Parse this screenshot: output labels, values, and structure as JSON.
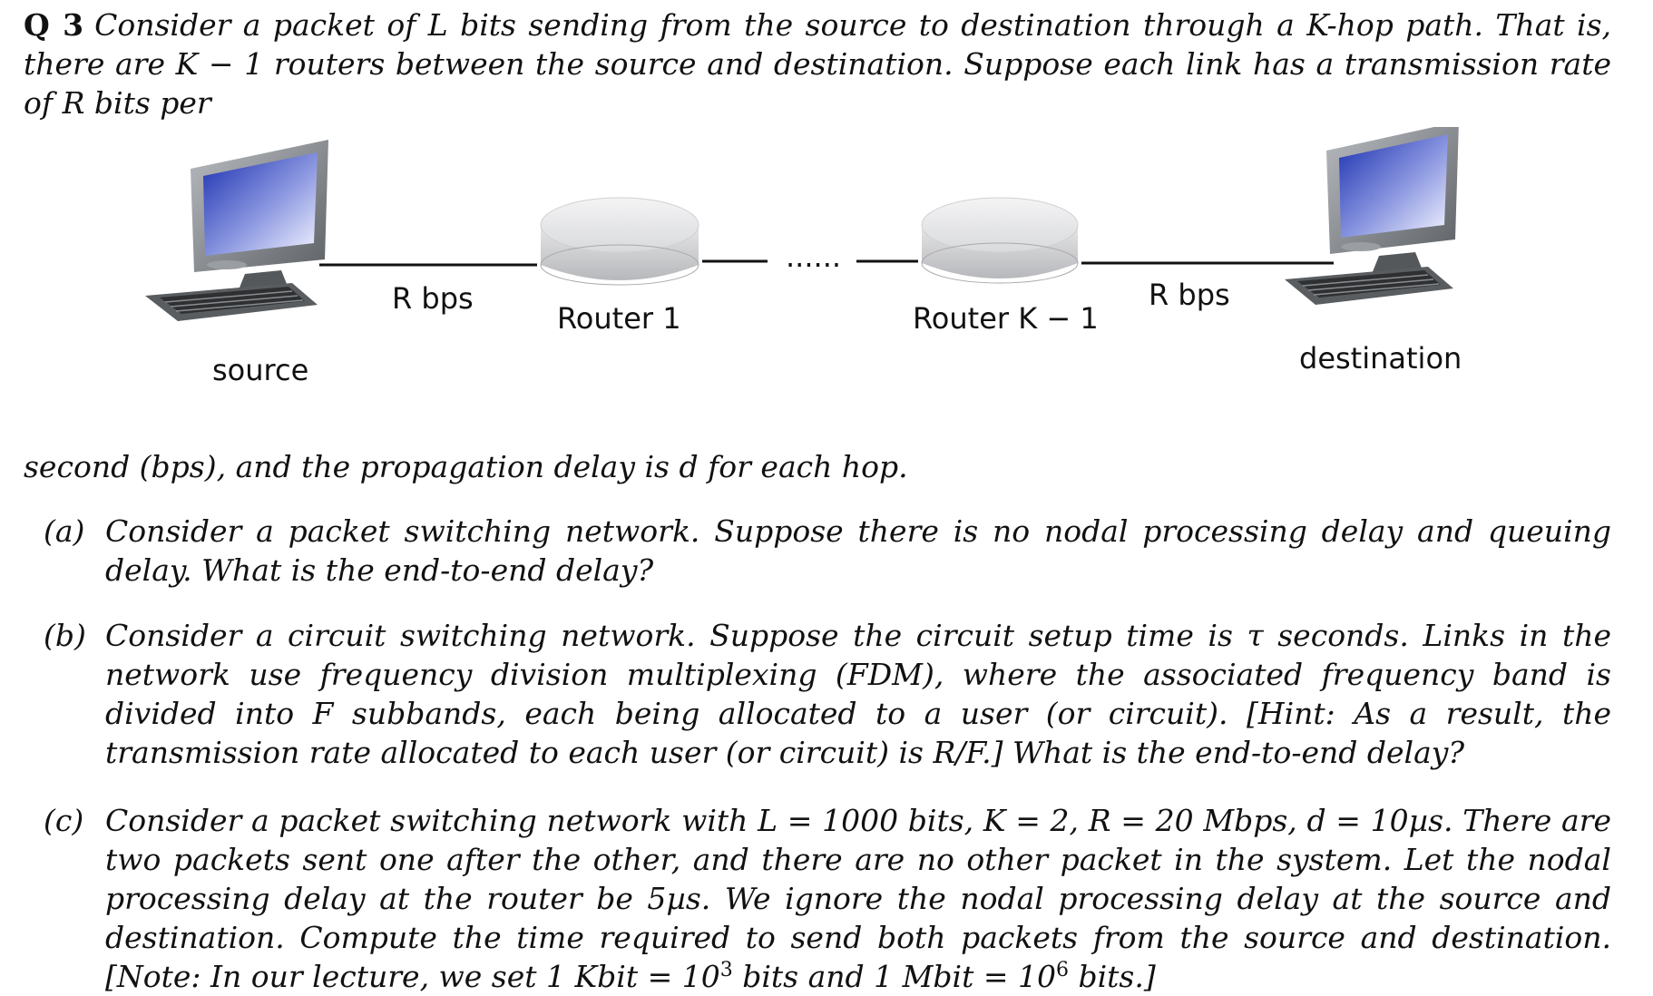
{
  "question": {
    "number": "Q 3",
    "intro_top": "Consider a packet of L bits sending from the source to destination through a K-hop path. That is, there are K − 1 routers between the source and destination. Suppose each link has a transmission rate of R bits per",
    "intro_bottom": "second (bps), and the propagation delay is d for each hop."
  },
  "diagram": {
    "source_label": "source",
    "destination_label": "destination",
    "router1_label": "Router 1",
    "routerK_label": "Router K − 1",
    "link_left_label": "R bps",
    "link_right_label": "R bps",
    "ellipsis": "......"
  },
  "parts": [
    {
      "mark": "(a)",
      "text": "Consider a packet switching network. Suppose there is no nodal processing delay and queuing delay. What is the end-to-end delay?"
    },
    {
      "mark": "(b)",
      "text": "Consider a circuit switching network. Suppose the circuit setup time is τ seconds. Links in the network use frequency division multiplexing (FDM), where the associated frequency band is divided into F subbands, each being allocated to a user (or circuit). [Hint: As a result, the transmission rate allocated to each user (or circuit) is R/F.] What is the end-to-end delay?"
    },
    {
      "mark": "(c)",
      "text_main": "Consider a packet switching network with L = 1000 bits, K = 2, R = 20 Mbps, d = 10µs. There are two packets sent one after the other, and there are no other packet in the system. Let the nodal processing delay at the router be 5µs. We ignore the nodal processing delay at the source and destination. Compute the time required to send both packets from the source and destination. [Note: In our lecture, we set 1 Kbit = 10",
      "exp1": "3",
      "text_mid": " bits and 1 Mbit = 10",
      "exp2": "6",
      "text_end": " bits.]"
    }
  ]
}
